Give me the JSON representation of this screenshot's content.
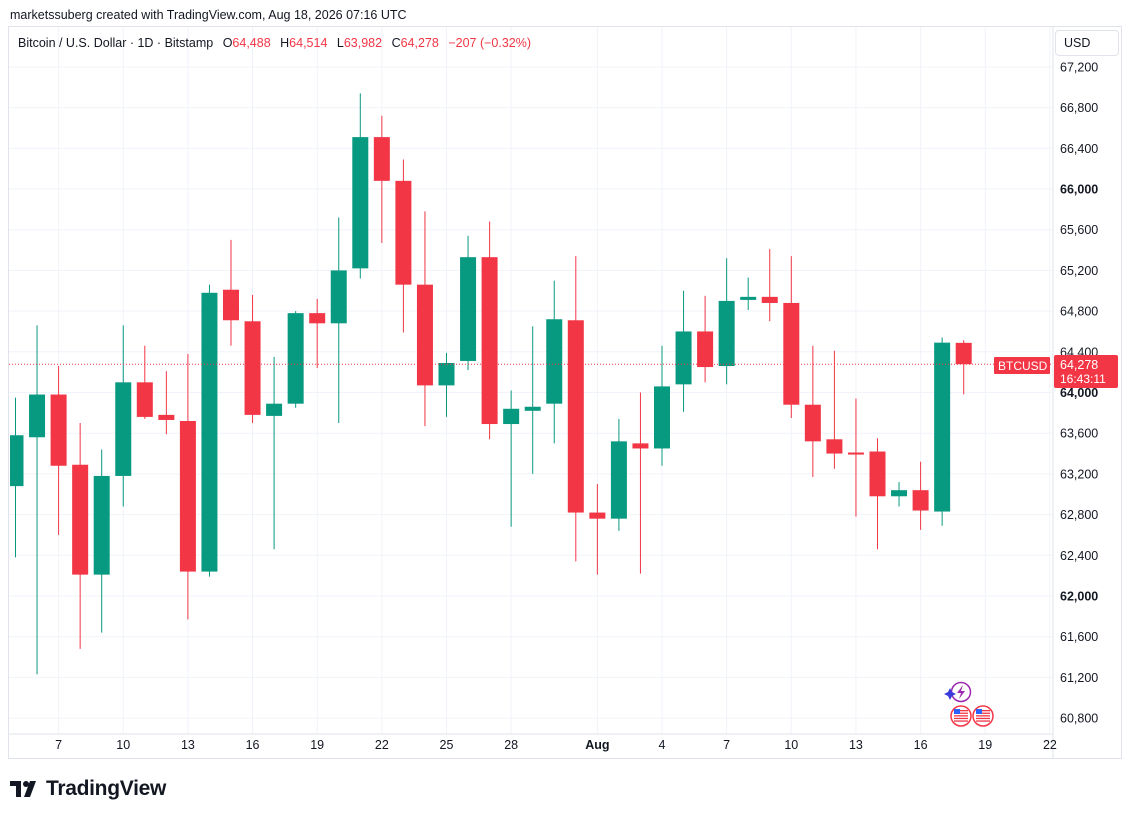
{
  "header": {
    "creator": "marketssuberg created with TradingView.com, Aug 18, 2026 07:16 UTC"
  },
  "legend": {
    "symbol": "Bitcoin / U.S. Dollar · 1D · Bitstamp",
    "o_label": "O",
    "o_value": "64,488",
    "h_label": "H",
    "h_value": "64,514",
    "l_label": "L",
    "l_value": "63,982",
    "c_label": "C",
    "c_value": "64,278",
    "change": "−207 (−0.32%)"
  },
  "currency_button": "USD",
  "price_label": {
    "symbol": "BTCUSD",
    "price": "64,278",
    "countdown": "16:43:11"
  },
  "brand": {
    "name": "TradingView"
  },
  "colors": {
    "up": "#089981",
    "down": "#f23645",
    "grid": "#f0f3fa",
    "text": "#131722"
  },
  "icons": [
    "lightning-event-icon",
    "us-flag-event-icon",
    "us-flag-event-icon"
  ],
  "chart_data": {
    "type": "candlestick",
    "y_ticks": [
      {
        "value": 60800,
        "label": "60,800"
      },
      {
        "value": 61200,
        "label": "61,200"
      },
      {
        "value": 61600,
        "label": "61,600"
      },
      {
        "value": 62000,
        "label": "62,000",
        "bold": true
      },
      {
        "value": 62400,
        "label": "62,400"
      },
      {
        "value": 62800,
        "label": "62,800"
      },
      {
        "value": 63200,
        "label": "63,200"
      },
      {
        "value": 63600,
        "label": "63,600"
      },
      {
        "value": 64000,
        "label": "64,000",
        "bold": true
      },
      {
        "value": 64400,
        "label": "64,400"
      },
      {
        "value": 64800,
        "label": "64,800"
      },
      {
        "value": 65200,
        "label": "65,200"
      },
      {
        "value": 65600,
        "label": "65,600"
      },
      {
        "value": 66000,
        "label": "66,000",
        "bold": true
      },
      {
        "value": 66400,
        "label": "66,400"
      },
      {
        "value": 66800,
        "label": "66,800"
      },
      {
        "value": 67200,
        "label": "67,200"
      }
    ],
    "x_ticks": [
      {
        "index": 2,
        "label": "7"
      },
      {
        "index": 5,
        "label": "10"
      },
      {
        "index": 8,
        "label": "13"
      },
      {
        "index": 11,
        "label": "16"
      },
      {
        "index": 14,
        "label": "19"
      },
      {
        "index": 17,
        "label": "22"
      },
      {
        "index": 20,
        "label": "25"
      },
      {
        "index": 23,
        "label": "28"
      },
      {
        "index": 27,
        "label": "Aug",
        "bold": true
      },
      {
        "index": 30,
        "label": "4"
      },
      {
        "index": 33,
        "label": "7"
      },
      {
        "index": 36,
        "label": "10"
      },
      {
        "index": 39,
        "label": "13"
      },
      {
        "index": 42,
        "label": "16"
      },
      {
        "index": 45,
        "label": "19"
      },
      {
        "index": 48,
        "label": "22"
      }
    ],
    "last_price": 64278,
    "candles": [
      {
        "o": 63080,
        "h": 63950,
        "l": 62380,
        "c": 63580
      },
      {
        "o": 63560,
        "h": 64660,
        "l": 61230,
        "c": 63980
      },
      {
        "o": 63980,
        "h": 64260,
        "l": 62600,
        "c": 63280
      },
      {
        "o": 63290,
        "h": 63700,
        "l": 61480,
        "c": 62210
      },
      {
        "o": 62210,
        "h": 63440,
        "l": 61640,
        "c": 63180
      },
      {
        "o": 63180,
        "h": 64660,
        "l": 62880,
        "c": 64100
      },
      {
        "o": 64100,
        "h": 64460,
        "l": 63740,
        "c": 63760
      },
      {
        "o": 63780,
        "h": 64210,
        "l": 63590,
        "c": 63730
      },
      {
        "o": 63720,
        "h": 64380,
        "l": 61770,
        "c": 62240
      },
      {
        "o": 62240,
        "h": 65060,
        "l": 62190,
        "c": 64980
      },
      {
        "o": 65010,
        "h": 65500,
        "l": 64460,
        "c": 64710
      },
      {
        "o": 64700,
        "h": 64960,
        "l": 63700,
        "c": 63780
      },
      {
        "o": 63770,
        "h": 64350,
        "l": 62460,
        "c": 63890
      },
      {
        "o": 63890,
        "h": 64800,
        "l": 63850,
        "c": 64780
      },
      {
        "o": 64780,
        "h": 64920,
        "l": 64240,
        "c": 64680
      },
      {
        "o": 64680,
        "h": 65720,
        "l": 63700,
        "c": 65200
      },
      {
        "o": 65220,
        "h": 66940,
        "l": 65120,
        "c": 66510
      },
      {
        "o": 66510,
        "h": 66720,
        "l": 65470,
        "c": 66080
      },
      {
        "o": 66080,
        "h": 66290,
        "l": 64590,
        "c": 65060
      },
      {
        "o": 65060,
        "h": 65780,
        "l": 63670,
        "c": 64070
      },
      {
        "o": 64070,
        "h": 64390,
        "l": 63760,
        "c": 64290
      },
      {
        "o": 64310,
        "h": 65540,
        "l": 64220,
        "c": 65330
      },
      {
        "o": 65330,
        "h": 65680,
        "l": 63540,
        "c": 63690
      },
      {
        "o": 63690,
        "h": 64020,
        "l": 62680,
        "c": 63840
      },
      {
        "o": 63820,
        "h": 64650,
        "l": 63200,
        "c": 63860
      },
      {
        "o": 63890,
        "h": 65100,
        "l": 63500,
        "c": 64720
      },
      {
        "o": 64710,
        "h": 65340,
        "l": 62340,
        "c": 62820
      },
      {
        "o": 62820,
        "h": 63100,
        "l": 62210,
        "c": 62760
      },
      {
        "o": 62760,
        "h": 63740,
        "l": 62640,
        "c": 63520
      },
      {
        "o": 63500,
        "h": 64000,
        "l": 62220,
        "c": 63450
      },
      {
        "o": 63450,
        "h": 64460,
        "l": 63280,
        "c": 64060
      },
      {
        "o": 64080,
        "h": 65000,
        "l": 63810,
        "c": 64600
      },
      {
        "o": 64600,
        "h": 64950,
        "l": 64100,
        "c": 64250
      },
      {
        "o": 64260,
        "h": 65320,
        "l": 64080,
        "c": 64900
      },
      {
        "o": 64910,
        "h": 65130,
        "l": 64810,
        "c": 64940
      },
      {
        "o": 64940,
        "h": 65410,
        "l": 64700,
        "c": 64880
      },
      {
        "o": 64880,
        "h": 65340,
        "l": 63750,
        "c": 63880
      },
      {
        "o": 63880,
        "h": 64460,
        "l": 63170,
        "c": 63520
      },
      {
        "o": 63540,
        "h": 64410,
        "l": 63250,
        "c": 63400
      },
      {
        "o": 63410,
        "h": 63940,
        "l": 62780,
        "c": 63390
      },
      {
        "o": 63420,
        "h": 63550,
        "l": 62460,
        "c": 62980
      },
      {
        "o": 62980,
        "h": 63120,
        "l": 62880,
        "c": 63040
      },
      {
        "o": 63040,
        "h": 63320,
        "l": 62650,
        "c": 62840
      },
      {
        "o": 62830,
        "h": 64540,
        "l": 62690,
        "c": 64490
      },
      {
        "o": 64488,
        "h": 64514,
        "l": 63982,
        "c": 64278
      }
    ]
  }
}
